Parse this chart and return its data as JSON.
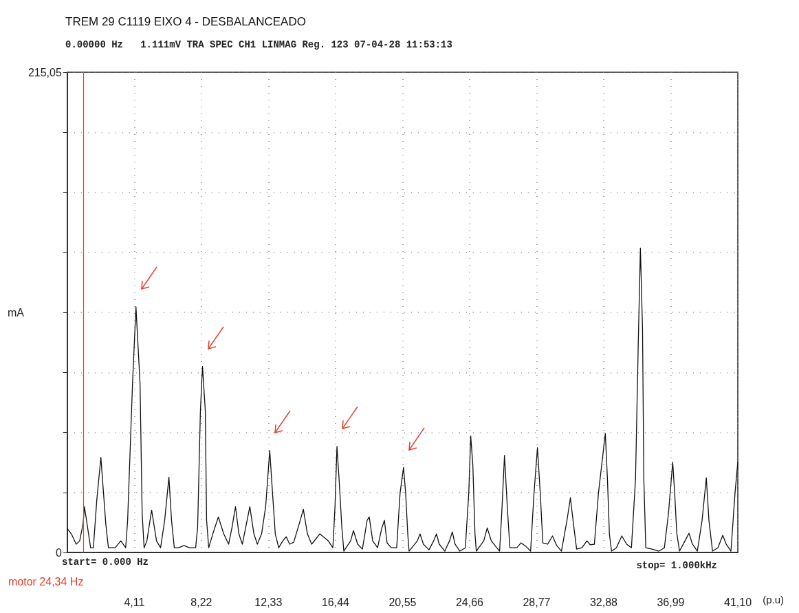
{
  "chart_data": {
    "type": "line",
    "title": "TREM 29 C1119 EIXO 4 - DESBALANCEADO",
    "subtitle": "0.00000 Hz   1.111mV TRA SPEC CH1 LINMAG Reg. 123 07-04-28 11:53:13",
    "xlabel": "(p.u)",
    "ylabel": "mA",
    "annotations": [
      "start= 0.000 Hz",
      "stop= 1.000kHz"
    ],
    "x": [
      0,
      0.25,
      0.55,
      0.76,
      0.97,
      1.05,
      1.18,
      1.43,
      1.6,
      1.81,
      2.06,
      2.36,
      2.52,
      2.94,
      3.28,
      3.58,
      3.7,
      4.0,
      4.21,
      4.46,
      4.59,
      4.71,
      4.88,
      5.17,
      5.47,
      5.72,
      5.97,
      6.23,
      6.39,
      6.56,
      6.82,
      7.15,
      7.49,
      7.87,
      7.99,
      8.16,
      8.29,
      8.46,
      8.54,
      8.67,
      8.92,
      9.26,
      9.59,
      9.89,
      10.1,
      10.31,
      10.52,
      10.73,
      10.94,
      11.19,
      11.44,
      11.65,
      11.91,
      12.16,
      12.41,
      12.58,
      12.75,
      12.96,
      13.21,
      13.42,
      13.63,
      13.88,
      14.22,
      14.47,
      14.72,
      14.98,
      15.48,
      15.99,
      16.28,
      16.41,
      16.53,
      16.66,
      16.83,
      16.95,
      17.37,
      17.54,
      17.8,
      18.09,
      18.38,
      18.51,
      18.72,
      19.02,
      19.27,
      19.44,
      19.6,
      19.86,
      20.19,
      20.4,
      20.61,
      20.74,
      20.87,
      20.95,
      21.46,
      21.62,
      21.83,
      22.17,
      22.46,
      22.63,
      22.8,
      23.14,
      23.43,
      23.6,
      23.77,
      24.06,
      24.4,
      24.61,
      24.73,
      24.86,
      24.99,
      25.07,
      25.53,
      25.74,
      25.99,
      26.25,
      26.5,
      26.63,
      26.8,
      26.97,
      27.13,
      27.56,
      27.81,
      28.1,
      28.4,
      28.61,
      28.82,
      28.99,
      29.15,
      29.45,
      29.74,
      30.0,
      30.29,
      30.63,
      30.84,
      31.0,
      31.22,
      31.55,
      31.85,
      32.06,
      32.31,
      32.56,
      32.98,
      33.11,
      33.23,
      33.36,
      33.66,
      33.99,
      34.29,
      34.58,
      34.83,
      35.0,
      35.13,
      35.26,
      35.34,
      35.46,
      35.84,
      36.26,
      36.6,
      36.85,
      37.11,
      37.23,
      37.36,
      37.53,
      37.86,
      38.11,
      38.32,
      38.62,
      38.91,
      39.17,
      39.33,
      39.55,
      39.88,
      40.18,
      40.39,
      40.68,
      40.93,
      41.1
    ],
    "series": [
      {
        "color": "#111111",
        "values": [
          10.7,
          8.3,
          3.7,
          5.2,
          12.9,
          20.5,
          14.4,
          2.1,
          2.1,
          23.6,
          42.6,
          12.9,
          2.1,
          2.1,
          5.2,
          2.1,
          14.4,
          75.7,
          110,
          75.7,
          17.5,
          2.1,
          5.2,
          19.0,
          5.2,
          2.1,
          14.4,
          33.7,
          14.4,
          2.1,
          2.1,
          3.1,
          2.1,
          2.1,
          11.3,
          63.4,
          83.3,
          63.4,
          14.4,
          2.1,
          8.3,
          15.9,
          8.3,
          3.7,
          11.3,
          20.5,
          8.3,
          3.7,
          11.3,
          20.5,
          8.3,
          3.7,
          8.3,
          20.5,
          45.7,
          26.7,
          8.3,
          2.1,
          5.2,
          7.0,
          3.7,
          4.6,
          12.9,
          19.3,
          8.3,
          3.7,
          8.3,
          5.2,
          2.1,
          20.5,
          47.5,
          32.8,
          11.3,
          0.6,
          5.2,
          9.8,
          3.7,
          1.5,
          14.4,
          15.9,
          5.2,
          2.1,
          10.7,
          14.4,
          4.3,
          2.1,
          2.1,
          26.7,
          38,
          26.7,
          8.3,
          0.6,
          5.2,
          8.3,
          3.7,
          1.2,
          5.2,
          8.3,
          3.7,
          0.6,
          5.2,
          9.2,
          3.7,
          0.6,
          2.1,
          26.7,
          52.1,
          39,
          8.3,
          0.6,
          5.2,
          11.0,
          5.2,
          2.8,
          0.6,
          17.5,
          43.5,
          20.5,
          2.1,
          2.1,
          4.3,
          2.8,
          0.6,
          26.7,
          46.9,
          26.7,
          4.3,
          3.7,
          7.4,
          3.1,
          0.6,
          14.4,
          24.5,
          14.4,
          1.5,
          2.1,
          5.2,
          3.4,
          3.7,
          26.7,
          53.3,
          32.8,
          8.3,
          0.6,
          2.1,
          7.4,
          3.7,
          2.1,
          32.8,
          94,
          136.3,
          100,
          32.8,
          2.1,
          1.5,
          0.6,
          2.1,
          17.5,
          40.4,
          26.7,
          8.6,
          0.6,
          5.2,
          8.6,
          3.7,
          0.6,
          14.4,
          33.4,
          14.4,
          0.6,
          2.1,
          7.7,
          3.7,
          0.6,
          26.7,
          40.4
        ]
      }
    ],
    "xlim": [
      0,
      41.1
    ],
    "xticks": [
      {
        "value": 4.11,
        "label": "4,11"
      },
      {
        "value": 8.22,
        "label": "8,22"
      },
      {
        "value": 12.33,
        "label": "12,33"
      },
      {
        "value": 16.44,
        "label": "16,44"
      },
      {
        "value": 20.55,
        "label": "20,55"
      },
      {
        "value": 24.66,
        "label": "24,66"
      },
      {
        "value": 28.77,
        "label": "28,77"
      },
      {
        "value": 32.88,
        "label": "32,88"
      },
      {
        "value": 36.99,
        "label": "36,99"
      },
      {
        "value": 41.1,
        "label": "41,10"
      }
    ],
    "ylim": [
      0,
      215.05
    ],
    "yticks": [
      0,
      {
        "value": 26.88,
        "label": null
      },
      {
        "value": 53.76,
        "label": null
      },
      {
        "value": 80.64,
        "label": null
      },
      {
        "value": 107.52,
        "label": null
      },
      {
        "value": 134.4,
        "label": null
      },
      {
        "value": 161.28,
        "label": null
      },
      {
        "value": 188.16,
        "label": null
      },
      {
        "value": 215.05,
        "label": "215,05"
      }
    ],
    "ref_lines": [
      {
        "axis": "x",
        "value": 1,
        "label": "motor 24,34 Hz",
        "color": "#e8402a"
      }
    ],
    "grid": true
  }
}
